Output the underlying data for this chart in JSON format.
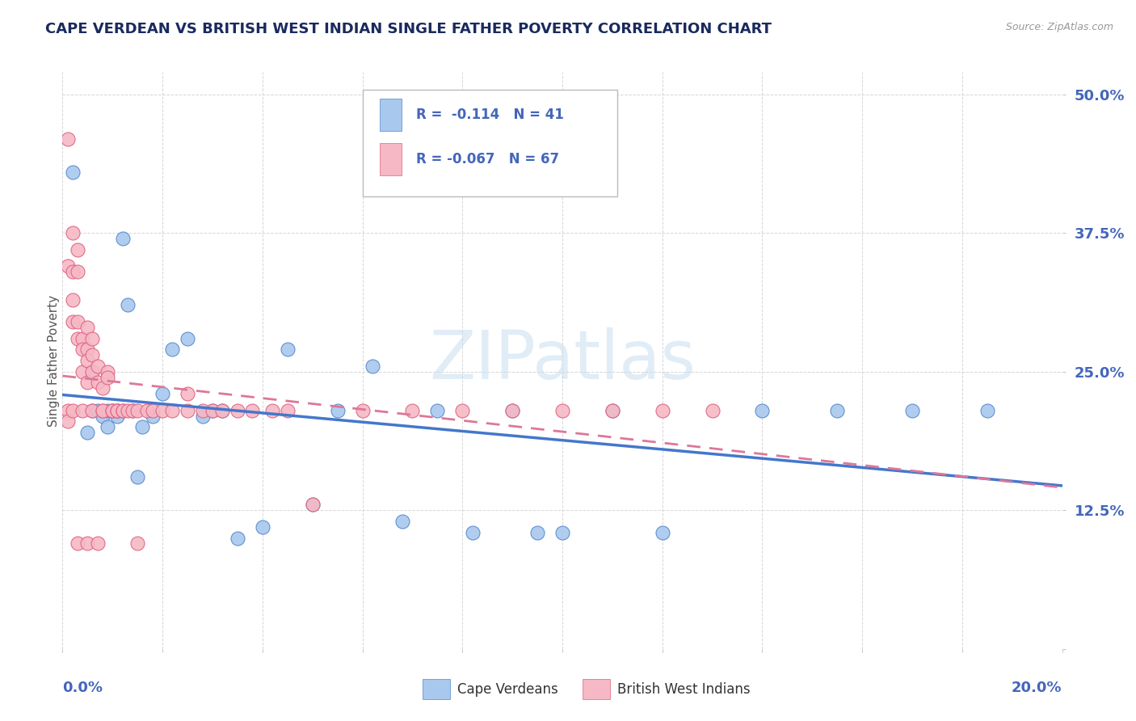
{
  "title": "CAPE VERDEAN VS BRITISH WEST INDIAN SINGLE FATHER POVERTY CORRELATION CHART",
  "source": "Source: ZipAtlas.com",
  "ylabel": "Single Father Poverty",
  "xlim": [
    0.0,
    0.2
  ],
  "ylim": [
    0.0,
    0.52
  ],
  "watermark": "ZIPatlas",
  "blue_color": "#a8c8ee",
  "pink_color": "#f5b8c4",
  "blue_edge": "#5588cc",
  "pink_edge": "#e06080",
  "blue_line_color": "#4477cc",
  "pink_line_color": "#dd7799",
  "title_color": "#1a2a5e",
  "axis_label_color": "#4466bb",
  "source_color": "#999999",
  "grid_color": "#cccccc",
  "legend_r1": "R =  -0.114   N = 41",
  "legend_r2": "R = -0.067   N = 67",
  "bottom_legend_1": "Cape Verdeans",
  "bottom_legend_2": "British West Indians",
  "cv_x": [
    0.002,
    0.005,
    0.006,
    0.006,
    0.007,
    0.008,
    0.009,
    0.009,
    0.01,
    0.011,
    0.011,
    0.012,
    0.013,
    0.014,
    0.015,
    0.016,
    0.018,
    0.02,
    0.022,
    0.025,
    0.028,
    0.03,
    0.032,
    0.035,
    0.04,
    0.045,
    0.05,
    0.055,
    0.062,
    0.068,
    0.075,
    0.082,
    0.09,
    0.095,
    0.1,
    0.11,
    0.12,
    0.14,
    0.155,
    0.17,
    0.185
  ],
  "cv_y": [
    0.43,
    0.195,
    0.215,
    0.25,
    0.215,
    0.21,
    0.2,
    0.215,
    0.215,
    0.21,
    0.215,
    0.37,
    0.31,
    0.215,
    0.155,
    0.2,
    0.21,
    0.23,
    0.27,
    0.28,
    0.21,
    0.215,
    0.215,
    0.1,
    0.11,
    0.27,
    0.13,
    0.215,
    0.255,
    0.115,
    0.215,
    0.105,
    0.215,
    0.105,
    0.105,
    0.215,
    0.105,
    0.215,
    0.215,
    0.215,
    0.215
  ],
  "bwi_x": [
    0.001,
    0.001,
    0.001,
    0.001,
    0.002,
    0.002,
    0.002,
    0.002,
    0.002,
    0.003,
    0.003,
    0.003,
    0.003,
    0.003,
    0.004,
    0.004,
    0.004,
    0.004,
    0.005,
    0.005,
    0.005,
    0.005,
    0.005,
    0.006,
    0.006,
    0.006,
    0.006,
    0.007,
    0.007,
    0.007,
    0.008,
    0.008,
    0.008,
    0.009,
    0.009,
    0.01,
    0.01,
    0.011,
    0.011,
    0.012,
    0.012,
    0.013,
    0.014,
    0.015,
    0.015,
    0.017,
    0.018,
    0.02,
    0.022,
    0.025,
    0.025,
    0.028,
    0.03,
    0.032,
    0.035,
    0.038,
    0.042,
    0.045,
    0.05,
    0.06,
    0.07,
    0.08,
    0.09,
    0.1,
    0.11,
    0.12,
    0.13
  ],
  "bwi_y": [
    0.46,
    0.345,
    0.215,
    0.205,
    0.375,
    0.34,
    0.315,
    0.295,
    0.215,
    0.36,
    0.34,
    0.295,
    0.28,
    0.095,
    0.28,
    0.27,
    0.25,
    0.215,
    0.29,
    0.27,
    0.26,
    0.24,
    0.095,
    0.28,
    0.265,
    0.25,
    0.215,
    0.255,
    0.24,
    0.095,
    0.235,
    0.215,
    0.215,
    0.25,
    0.245,
    0.215,
    0.215,
    0.215,
    0.215,
    0.215,
    0.215,
    0.215,
    0.215,
    0.215,
    0.095,
    0.215,
    0.215,
    0.215,
    0.215,
    0.23,
    0.215,
    0.215,
    0.215,
    0.215,
    0.215,
    0.215,
    0.215,
    0.215,
    0.13,
    0.215,
    0.215,
    0.215,
    0.215,
    0.215,
    0.215,
    0.215,
    0.215
  ]
}
